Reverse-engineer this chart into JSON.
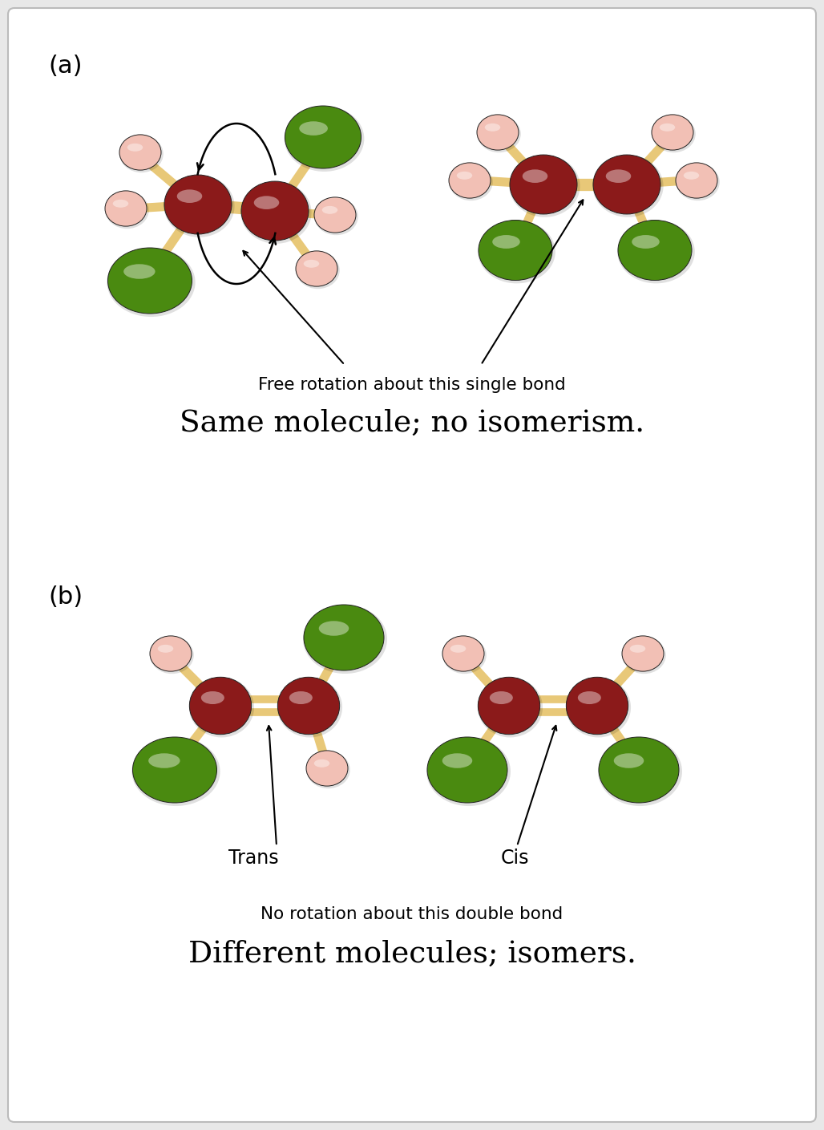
{
  "bg_color": "#e8e8e8",
  "panel_bg": "#ffffff",
  "title_a": "(a)",
  "title_b": "(b)",
  "text_a_small": "Free rotation about this single bond",
  "text_a_large": "Same molecule; no isomerism.",
  "text_b_small": "No rotation about this double bond",
  "text_b_large": "Different molecules; isomers.",
  "text_trans": "Trans",
  "text_cis": "Cis",
  "carbon_color": "#8B1A1A",
  "green_color": "#4A8A10",
  "pink_color": "#F2C0B5",
  "bond_color": "#E8C878",
  "panel_edge": "#bbbbbb"
}
